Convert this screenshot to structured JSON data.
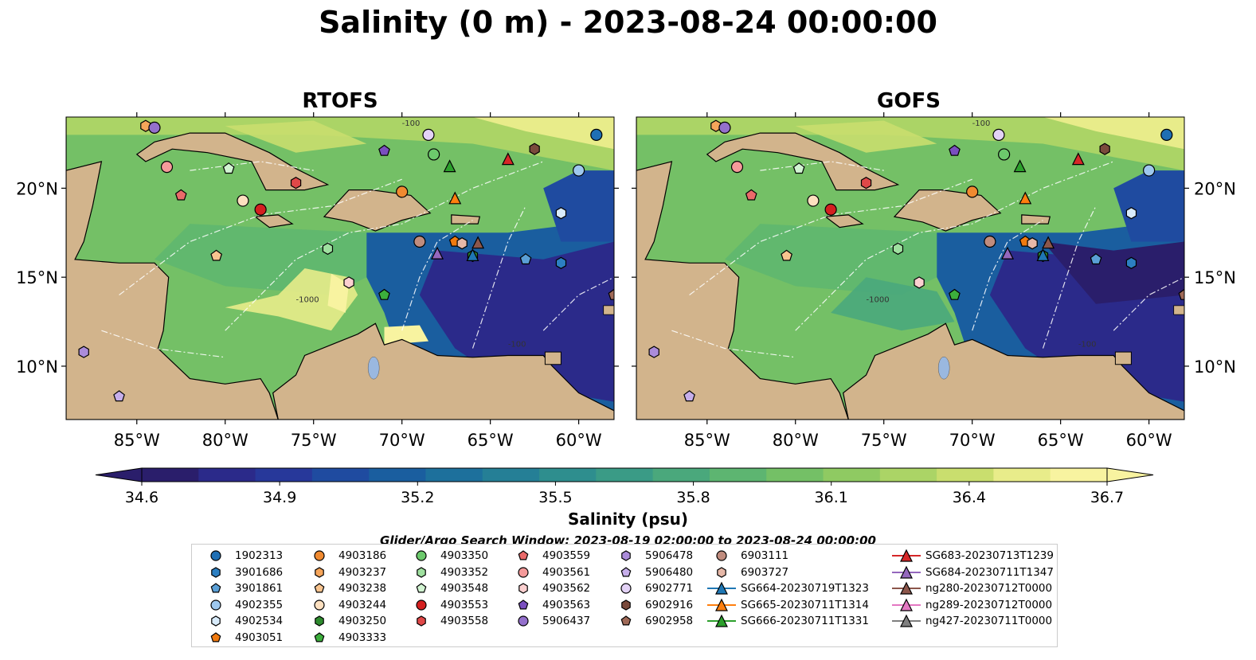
{
  "title": "Salinity (0 m) - 2023-08-24 00:00:00",
  "panels": [
    {
      "name": "RTOFS"
    },
    {
      "name": "GOFS"
    }
  ],
  "map": {
    "lon_range": [
      -89,
      -58
    ],
    "lat_range": [
      7,
      24
    ],
    "lon_ticks": [
      -85,
      -80,
      -75,
      -70,
      -65,
      -60
    ],
    "lon_tick_labels": [
      "85°W",
      "80°W",
      "75°W",
      "70°W",
      "65°W",
      "60°W"
    ],
    "lat_ticks": [
      10,
      15,
      20
    ],
    "lat_tick_labels": [
      "10°N",
      "15°N",
      "20°N"
    ],
    "contour_labels": [
      "-100",
      "-1000",
      "-100"
    ],
    "land_color": "#d2b48c",
    "lake_color": "#9ab8e0"
  },
  "colorbar": {
    "label": "Salinity (psu)",
    "min": 34.6,
    "max": 36.7,
    "ticks": [
      "34.6",
      "34.9",
      "35.2",
      "35.5",
      "35.8",
      "36.1",
      "36.4",
      "36.7"
    ],
    "colors": [
      "#2a1e6b",
      "#2b2a8a",
      "#27389a",
      "#1f4ba0",
      "#1a5e9f",
      "#1d709c",
      "#257f96",
      "#2e8e8e",
      "#3a9b86",
      "#4aa87c",
      "#5db571",
      "#74c066",
      "#8fca62",
      "#abd466",
      "#c9de6e",
      "#e8ec8a",
      "#f8f3a0"
    ]
  },
  "search_window": "Glider/Argo Search Window: 2023-08-19 02:00:00 to 2023-08-24 00:00:00",
  "legend": {
    "columns": [
      [
        {
          "label": "1902313",
          "marker": "circle",
          "color": "#1f6fb4"
        },
        {
          "label": "3901686",
          "marker": "hexagon",
          "color": "#2c7fc2"
        },
        {
          "label": "3901861",
          "marker": "pentagon",
          "color": "#5a9fd6"
        },
        {
          "label": "4902355",
          "marker": "circle",
          "color": "#9ec8ee"
        },
        {
          "label": "4902534",
          "marker": "hexagon",
          "color": "#d8ebfb"
        },
        {
          "label": "4903051",
          "marker": "pentagon",
          "color": "#f07a10"
        }
      ],
      [
        {
          "label": "4903186",
          "marker": "circle",
          "color": "#f08a30"
        },
        {
          "label": "4903237",
          "marker": "hexagon",
          "color": "#f6a55a"
        },
        {
          "label": "4903238",
          "marker": "pentagon",
          "color": "#f8c48f"
        },
        {
          "label": "4903244",
          "marker": "circle",
          "color": "#fde0c0"
        },
        {
          "label": "4903250",
          "marker": "hexagon",
          "color": "#2e8b2e"
        },
        {
          "label": "4903333",
          "marker": "pentagon",
          "color": "#3cae3c"
        }
      ],
      [
        {
          "label": "4903350",
          "marker": "circle",
          "color": "#6cc96c"
        },
        {
          "label": "4903352",
          "marker": "hexagon",
          "color": "#9fe09f"
        },
        {
          "label": "4903548",
          "marker": "pentagon",
          "color": "#d2f4d2"
        },
        {
          "label": "4903553",
          "marker": "circle",
          "color": "#d42020"
        },
        {
          "label": "4903558",
          "marker": "hexagon",
          "color": "#e04848"
        }
      ],
      [
        {
          "label": "4903559",
          "marker": "pentagon",
          "color": "#ea6a6a"
        },
        {
          "label": "4903561",
          "marker": "circle",
          "color": "#f59a9a"
        },
        {
          "label": "4903562",
          "marker": "hexagon",
          "color": "#fcd0d0"
        },
        {
          "label": "4903563",
          "marker": "pentagon",
          "color": "#7a4fbf"
        },
        {
          "label": "5906437",
          "marker": "circle",
          "color": "#9470cc"
        }
      ],
      [
        {
          "label": "5906478",
          "marker": "hexagon",
          "color": "#ab8cda"
        },
        {
          "label": "5906480",
          "marker": "pentagon",
          "color": "#c6aeea"
        },
        {
          "label": "6902771",
          "marker": "circle",
          "color": "#e3d2f6"
        },
        {
          "label": "6902916",
          "marker": "hexagon",
          "color": "#7a4a3c"
        },
        {
          "label": "6902958",
          "marker": "pentagon",
          "color": "#a06a58"
        }
      ],
      [
        {
          "label": "6903111",
          "marker": "circle",
          "color": "#c08c7e"
        },
        {
          "label": "6903727",
          "marker": "hexagon",
          "color": "#e6b8a8"
        },
        {
          "label": "SG664-20230719T1323",
          "marker": "triangle-line",
          "color": "#1f77b4"
        },
        {
          "label": "SG665-20230711T1314",
          "marker": "triangle-line",
          "color": "#ff7f0e"
        },
        {
          "label": "SG666-20230711T1331",
          "marker": "triangle-line",
          "color": "#2ca02c"
        }
      ],
      [
        {
          "label": "SG683-20230713T1239",
          "marker": "triangle-line",
          "color": "#d62728"
        },
        {
          "label": "SG684-20230711T1347",
          "marker": "triangle-line",
          "color": "#9467bd"
        },
        {
          "label": "ng280-20230712T0000",
          "marker": "triangle-line",
          "color": "#8c564b"
        },
        {
          "label": "ng289-20230712T0000",
          "marker": "triangle-line",
          "color": "#e377c2"
        },
        {
          "label": "ng427-20230711T0000",
          "marker": "triangle-line",
          "color": "#7f7f7f"
        }
      ]
    ]
  }
}
